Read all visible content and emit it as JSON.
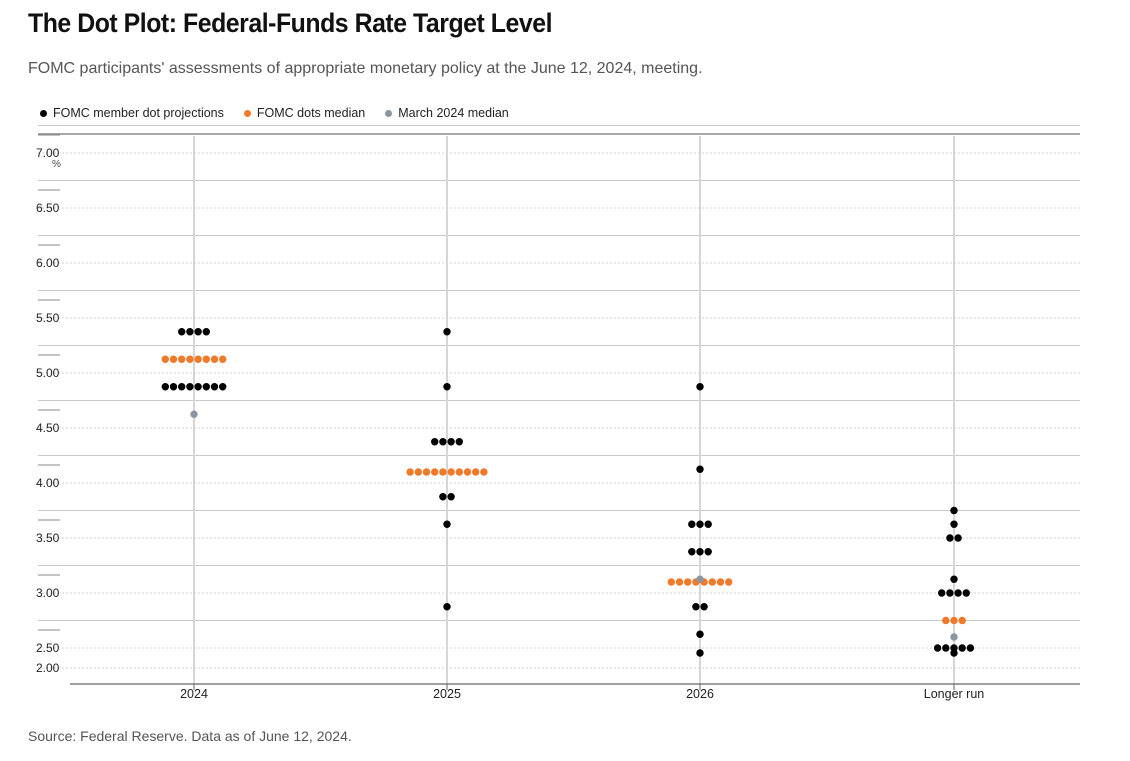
{
  "header": {
    "title": "The Dot Plot: Federal-Funds Rate Target Level",
    "subtitle": "FOMC participants' assessments of appropriate monetary policy at the June 12, 2024, meeting."
  },
  "legend": {
    "items": [
      {
        "label": "FOMC member dot projections",
        "color": "#000000"
      },
      {
        "label": "FOMC dots median",
        "color": "#f07a2a"
      },
      {
        "label": "March 2024 median",
        "color": "#8a96a3"
      }
    ]
  },
  "footer": {
    "source": "Source: Federal Reserve. Data as of June 12, 2024."
  },
  "chart_data": {
    "type": "scatter",
    "title": "The Dot Plot: Federal-Funds Rate Target Level",
    "subtitle": "FOMC participants' assessments of appropriate monetary policy at the June 12, 2024, meeting.",
    "categories": [
      "2024",
      "2025",
      "2026",
      "Longer run"
    ],
    "y_unit": "%",
    "ylim": [
      2.0,
      7.0
    ],
    "yticks": [
      "2.00",
      "2.50",
      "3.00",
      "3.50",
      "4.00",
      "4.50",
      "5.00",
      "5.50",
      "6.00",
      "6.50",
      "7.00"
    ],
    "grid": true,
    "legend_position": "top-left",
    "colors": {
      "projection": "#000000",
      "median": "#f07a2a",
      "march_median": "#8a96a3"
    },
    "projections": [
      {
        "category": "2024",
        "points": [
          {
            "y": 5.375,
            "count": 4
          },
          {
            "y": 4.875,
            "count": 8
          }
        ]
      },
      {
        "category": "2025",
        "points": [
          {
            "y": 5.375,
            "count": 1
          },
          {
            "y": 4.875,
            "count": 1
          },
          {
            "y": 4.375,
            "count": 4
          },
          {
            "y": 3.875,
            "count": 2
          },
          {
            "y": 3.625,
            "count": 1
          },
          {
            "y": 2.875,
            "count": 1
          }
        ]
      },
      {
        "category": "2026",
        "points": [
          {
            "y": 4.875,
            "count": 1
          },
          {
            "y": 4.125,
            "count": 1
          },
          {
            "y": 3.625,
            "count": 3
          },
          {
            "y": 3.375,
            "count": 3
          },
          {
            "y": 2.875,
            "count": 2
          },
          {
            "y": 2.625,
            "count": 1
          },
          {
            "y": 2.375,
            "count": 1
          }
        ]
      },
      {
        "category": "Longer run",
        "points": [
          {
            "y": 3.75,
            "count": 1
          },
          {
            "y": 3.625,
            "count": 1
          },
          {
            "y": 3.5,
            "count": 2
          },
          {
            "y": 3.125,
            "count": 1
          },
          {
            "y": 3.0,
            "count": 4
          },
          {
            "y": 2.5,
            "count": 5
          },
          {
            "y": 2.375,
            "count": 1
          }
        ]
      }
    ],
    "median": [
      {
        "category": "2024",
        "y": 5.125,
        "count": 8
      },
      {
        "category": "2025",
        "y": 4.1,
        "count": 10
      },
      {
        "category": "2026",
        "y": 3.1,
        "count": 8
      },
      {
        "category": "Longer run",
        "y": 2.75,
        "count": 3
      }
    ],
    "march_median": [
      {
        "category": "2024",
        "y": 4.625
      },
      {
        "category": "2026",
        "y": 3.125
      },
      {
        "category": "Longer run",
        "y": 2.6
      }
    ]
  }
}
